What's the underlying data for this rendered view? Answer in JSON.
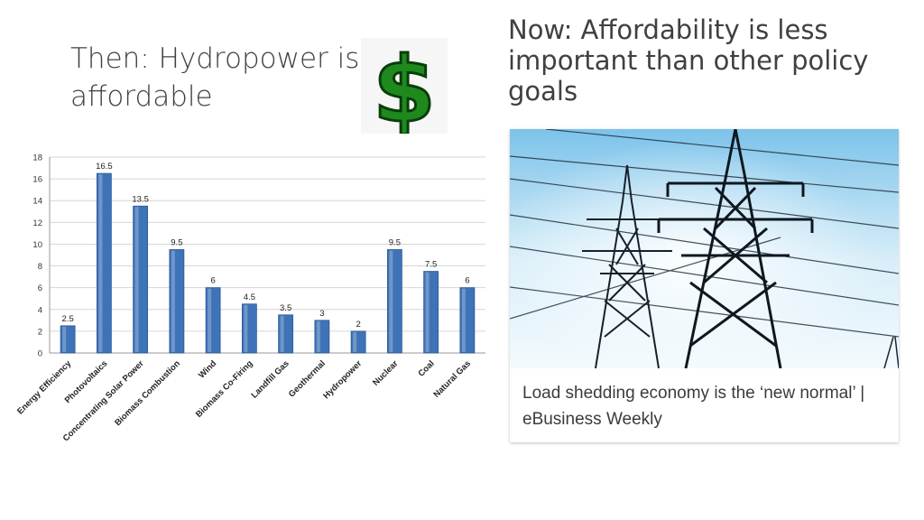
{
  "slide": {
    "left_heading": "Then: Hydropower is affordable",
    "right_heading": "Now: Affordability is less important than other policy goals",
    "icon": "dollar-sign-icon",
    "dollar_color": "#1e8a1e"
  },
  "news_card": {
    "caption": "Load shedding economy is the ‘new normal’ | eBusiness Weekly"
  },
  "chart_data": {
    "type": "bar",
    "categories": [
      "Energy Efficiency",
      "Photovoltaics",
      "Concentrating Solar Power",
      "Biomass Combustion",
      "Wind",
      "Biomass Co-Firing",
      "Landfill Gas",
      "Geothermal",
      "Hydropower",
      "Nuclear",
      "Coal",
      "Natural Gas"
    ],
    "values": [
      2.5,
      16.5,
      13.5,
      9.5,
      6,
      4.5,
      3.5,
      3,
      2,
      9.5,
      7.5,
      6
    ],
    "value_labels": [
      "2.5",
      "16.5",
      "13.5",
      "9.5",
      "6",
      "4.5",
      "3.5",
      "3",
      "2",
      "9.5",
      "7.5",
      "6"
    ],
    "title": "",
    "xlabel": "",
    "ylabel": "",
    "ylim": [
      0,
      18
    ],
    "yticks": [
      0,
      2,
      4,
      6,
      8,
      10,
      12,
      14,
      16,
      18
    ],
    "grid": true,
    "bar_color": "#3f73b8"
  }
}
